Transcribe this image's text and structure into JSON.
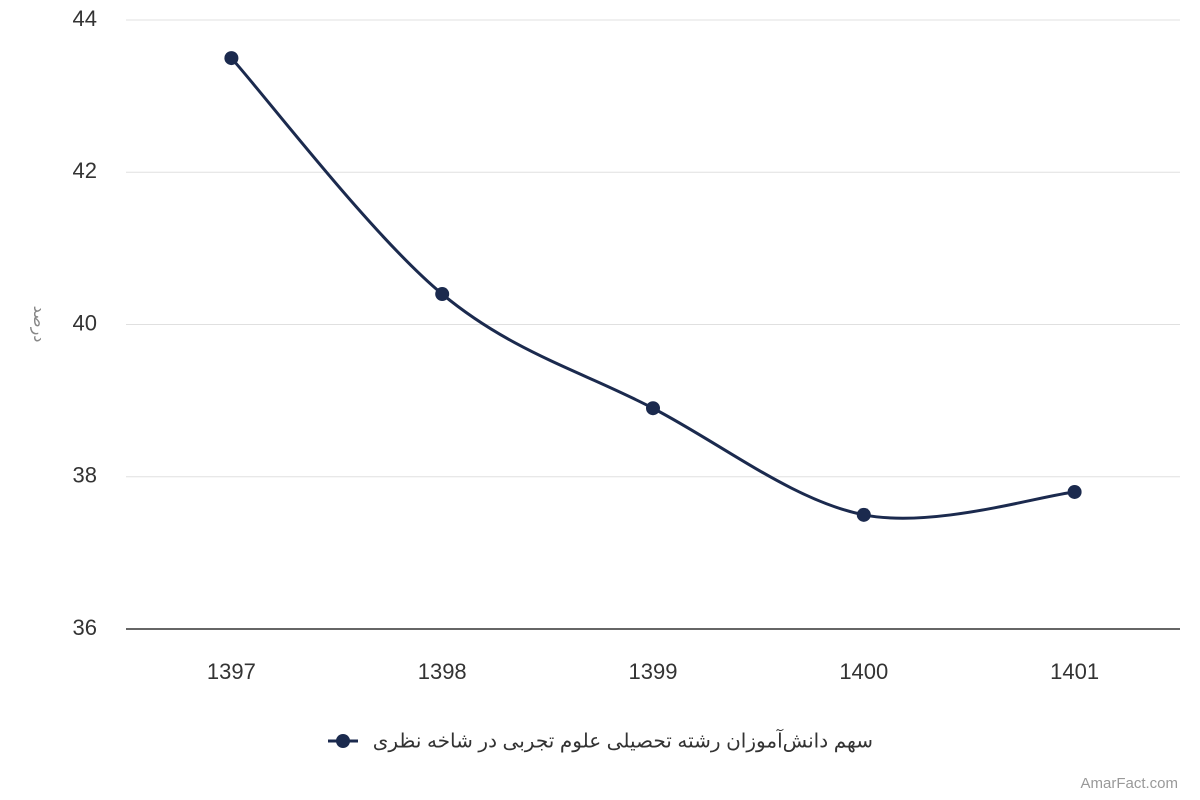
{
  "chart_data": {
    "type": "line",
    "y_label": "درصد",
    "categories": [
      "1397",
      "1398",
      "1399",
      "1400",
      "1401"
    ],
    "series": [
      {
        "name": "سهم دانش‌آموزان رشته تحصیلی علوم تجربی در شاخه نظری",
        "color": "#1b2a4e",
        "values": [
          43.5,
          40.4,
          38.9,
          37.5,
          37.8
        ]
      }
    ],
    "ylim": [
      36,
      44
    ],
    "yticks": [
      36,
      38,
      40,
      42,
      44
    ],
    "grid": true,
    "smooth": true,
    "credit": "AmarFact.com"
  }
}
